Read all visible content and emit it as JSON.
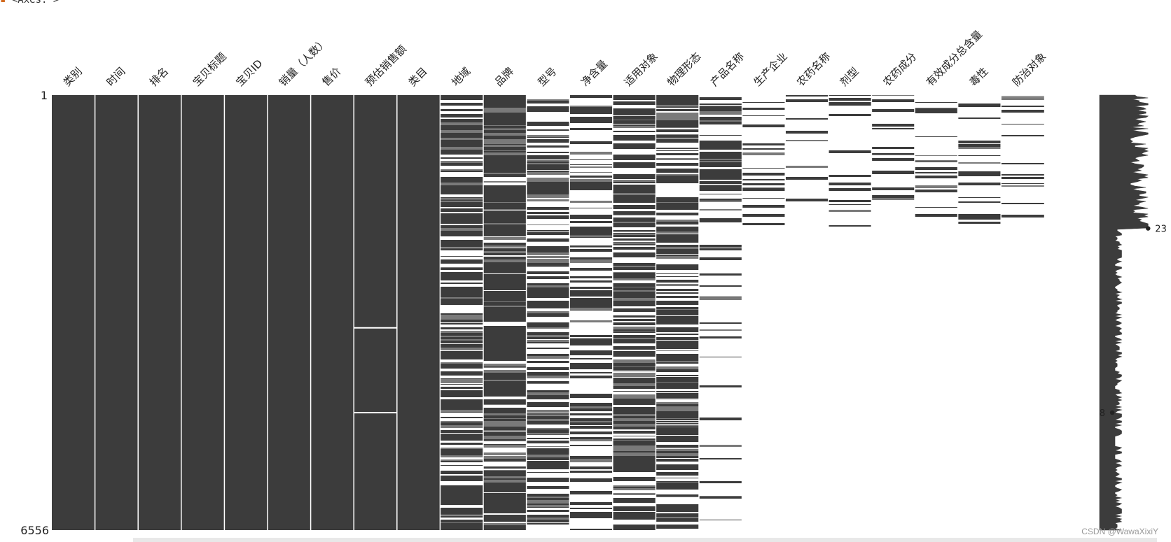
{
  "header_text": "<Axes: >",
  "watermark": "CSDN @WawaXixiY",
  "chart_data": {
    "type": "heatmap",
    "subtype": "missingno-matrix",
    "title": "",
    "n_rows": 6556,
    "row_labels": {
      "top": "1",
      "bottom": "6556"
    },
    "columns": [
      "类别",
      "时间",
      "排名",
      "宝贝标题",
      "宝贝ID",
      "销量（人数）",
      "售价",
      "预估销售额",
      "类目",
      "地域",
      "品牌",
      "型号",
      "净含量",
      "适用对象",
      "物理形态",
      "产品名称",
      "生产企业",
      "农药名称",
      "剂型",
      "农药成分",
      "有效成分总含量",
      "毒性",
      "防治对象"
    ],
    "column_density": [
      1.0,
      1.0,
      1.0,
      1.0,
      1.0,
      1.0,
      1.0,
      0.999,
      1.0,
      0.72,
      0.87,
      0.55,
      0.5,
      0.68,
      0.7,
      0.25,
      0.17,
      0.17,
      0.17,
      0.17,
      0.17,
      0.17,
      0.17
    ],
    "filled_until_fraction": [
      1,
      1,
      1,
      1,
      1,
      1,
      1,
      1,
      1,
      1,
      1,
      1,
      1,
      1,
      1,
      1,
      0.3,
      0.3,
      0.3,
      0.3,
      0.3,
      0.3,
      0.3
    ],
    "missing_rows_fraction": {
      "预估销售额": [
        0.535,
        0.73
      ]
    },
    "sparkline": {
      "label_max": "23",
      "label_min": "8",
      "max_completeness": 23,
      "min_completeness": 8,
      "max_row_fraction": 0.3,
      "min_row_fraction": 0.73
    },
    "colors": {
      "filled": "#3c3c3c",
      "background": "#ffffff"
    }
  }
}
